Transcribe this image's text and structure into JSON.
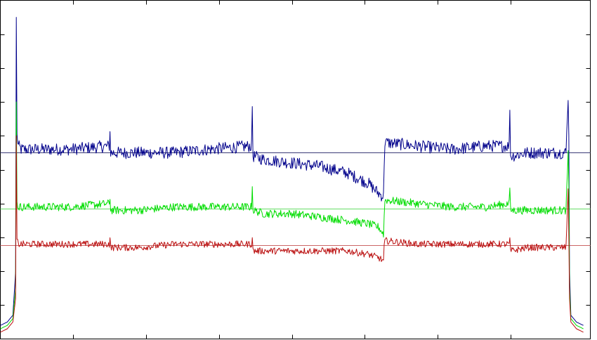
{
  "chart_data": {
    "type": "line",
    "title": "",
    "xlabel": "",
    "ylabel": "",
    "xlim": [
      0,
      850
    ],
    "ylim": [
      0,
      1
    ],
    "grid": false,
    "legend": "none",
    "x_tick_values": [
      105,
      210,
      315,
      420,
      525,
      630,
      735
    ],
    "y_tick_values": [
      0.1,
      0.2,
      0.3,
      0.4,
      0.5,
      0.6,
      0.7,
      0.8,
      0.9
    ],
    "reference_lines": [
      {
        "y": 0.55,
        "color": "#3c3c78"
      },
      {
        "y": 0.385,
        "color": "#66dd66"
      },
      {
        "y": 0.276,
        "color": "#cc6666"
      }
    ],
    "series": [
      {
        "color": "#00008b",
        "noise": 0.018,
        "x": [
          0,
          10,
          18,
          22,
          23,
          24,
          26,
          30,
          60,
          100,
          157,
          158,
          159,
          200,
          250,
          300,
          362,
          363,
          364,
          380,
          420,
          460,
          500,
          530,
          545,
          552,
          553,
          554,
          556,
          600,
          650,
          700,
          733,
          734,
          735,
          760,
          800,
          815,
          818,
          819,
          820,
          822,
          830,
          840
        ],
        "y": [
          0.04,
          0.05,
          0.07,
          0.2,
          0.95,
          0.6,
          0.57,
          0.56,
          0.56,
          0.56,
          0.57,
          0.61,
          0.55,
          0.55,
          0.55,
          0.56,
          0.57,
          0.69,
          0.54,
          0.53,
          0.52,
          0.51,
          0.49,
          0.46,
          0.43,
          0.42,
          0.52,
          0.58,
          0.58,
          0.57,
          0.56,
          0.57,
          0.57,
          0.69,
          0.54,
          0.55,
          0.55,
          0.55,
          0.72,
          0.6,
          0.2,
          0.07,
          0.05,
          0.04
        ]
      },
      {
        "color": "#00dd00",
        "noise": 0.012,
        "x": [
          0,
          10,
          18,
          22,
          23,
          24,
          26,
          30,
          60,
          100,
          157,
          158,
          159,
          200,
          250,
          300,
          362,
          363,
          364,
          380,
          420,
          460,
          500,
          530,
          545,
          552,
          553,
          554,
          556,
          600,
          650,
          700,
          733,
          734,
          735,
          760,
          800,
          815,
          818,
          819,
          820,
          822,
          830,
          840
        ],
        "y": [
          0.03,
          0.04,
          0.06,
          0.15,
          0.7,
          0.4,
          0.39,
          0.39,
          0.39,
          0.39,
          0.4,
          0.42,
          0.38,
          0.38,
          0.39,
          0.39,
          0.39,
          0.46,
          0.38,
          0.37,
          0.37,
          0.36,
          0.35,
          0.34,
          0.33,
          0.31,
          0.36,
          0.41,
          0.41,
          0.4,
          0.39,
          0.39,
          0.4,
          0.45,
          0.38,
          0.38,
          0.38,
          0.38,
          0.55,
          0.45,
          0.15,
          0.06,
          0.04,
          0.03
        ]
      },
      {
        "color": "#bb1111",
        "noise": 0.01,
        "x": [
          0,
          10,
          18,
          22,
          23,
          24,
          26,
          30,
          60,
          100,
          157,
          158,
          159,
          200,
          250,
          300,
          362,
          363,
          364,
          380,
          420,
          460,
          500,
          530,
          545,
          552,
          553,
          554,
          556,
          600,
          650,
          700,
          733,
          734,
          735,
          760,
          800,
          815,
          818,
          819,
          820,
          822,
          830,
          840
        ],
        "y": [
          0.02,
          0.03,
          0.05,
          0.12,
          0.6,
          0.29,
          0.28,
          0.28,
          0.28,
          0.28,
          0.28,
          0.3,
          0.27,
          0.27,
          0.28,
          0.28,
          0.28,
          0.3,
          0.26,
          0.26,
          0.26,
          0.26,
          0.26,
          0.25,
          0.24,
          0.23,
          0.27,
          0.29,
          0.29,
          0.28,
          0.28,
          0.28,
          0.28,
          0.29,
          0.26,
          0.27,
          0.27,
          0.27,
          0.45,
          0.3,
          0.12,
          0.05,
          0.03,
          0.02
        ]
      }
    ]
  }
}
